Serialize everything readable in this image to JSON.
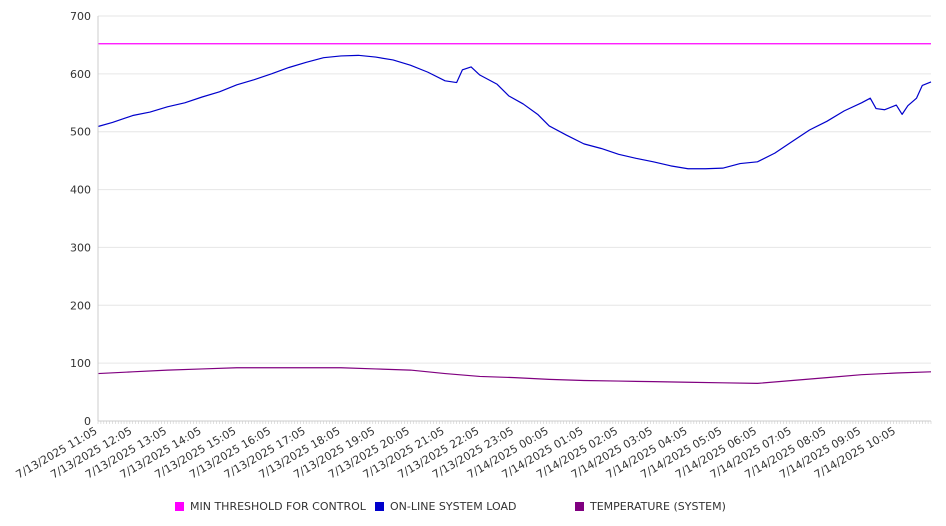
{
  "chart_data": {
    "type": "line",
    "ylim": [
      0,
      700
    ],
    "yticks": [
      0,
      100,
      200,
      300,
      400,
      500,
      600,
      700
    ],
    "x_tick_labels": [
      "7/13/2025 11:05",
      "7/13/2025 12:05",
      "7/13/2025 13:05",
      "7/13/2025 14:05",
      "7/13/2025 15:05",
      "7/13/2025 16:05",
      "7/13/2025 17:05",
      "7/13/2025 18:05",
      "7/13/2025 19:05",
      "7/13/2025 20:05",
      "7/13/2025 21:05",
      "7/13/2025 22:05",
      "7/13/2025 23:05",
      "7/14/2025 00:05",
      "7/14/2025 01:05",
      "7/14/2025 02:05",
      "7/14/2025 03:05",
      "7/14/2025 04:05",
      "7/14/2025 05:05",
      "7/14/2025 06:05",
      "7/14/2025 07:05",
      "7/14/2025 08:05",
      "7/14/2025 09:05",
      "7/14/2025 10:05"
    ],
    "x_start": "7/13/2025 11:05",
    "x_end": "7/14/2025 11:05",
    "grid": true,
    "legend_position": "bottom",
    "series": [
      {
        "name": "MIN THRESHOLD FOR CONTROL",
        "color": "#ff00ff",
        "points": [
          [
            "7/13/2025 11:05",
            652
          ],
          [
            "7/14/2025 11:05",
            652
          ]
        ]
      },
      {
        "name": "ON-LINE SYSTEM LOAD",
        "color": "#0000cc",
        "points": [
          [
            "7/13/2025 11:05",
            509
          ],
          [
            "7/13/2025 11:30",
            516
          ],
          [
            "7/13/2025 12:05",
            528
          ],
          [
            "7/13/2025 12:35",
            534
          ],
          [
            "7/13/2025 13:05",
            543
          ],
          [
            "7/13/2025 13:35",
            550
          ],
          [
            "7/13/2025 14:05",
            560
          ],
          [
            "7/13/2025 14:35",
            569
          ],
          [
            "7/13/2025 15:05",
            581
          ],
          [
            "7/13/2025 15:35",
            590
          ],
          [
            "7/13/2025 16:05",
            600
          ],
          [
            "7/13/2025 16:35",
            611
          ],
          [
            "7/13/2025 17:05",
            620
          ],
          [
            "7/13/2025 17:35",
            628
          ],
          [
            "7/13/2025 18:05",
            631
          ],
          [
            "7/13/2025 18:35",
            632
          ],
          [
            "7/13/2025 19:05",
            629
          ],
          [
            "7/13/2025 19:35",
            624
          ],
          [
            "7/13/2025 20:05",
            615
          ],
          [
            "7/13/2025 20:35",
            603
          ],
          [
            "7/13/2025 21:05",
            588
          ],
          [
            "7/13/2025 21:25",
            585
          ],
          [
            "7/13/2025 21:35",
            607
          ],
          [
            "7/13/2025 21:50",
            612
          ],
          [
            "7/13/2025 22:05",
            598
          ],
          [
            "7/13/2025 22:35",
            582
          ],
          [
            "7/13/2025 22:55",
            562
          ],
          [
            "7/13/2025 23:20",
            548
          ],
          [
            "7/13/2025 23:45",
            530
          ],
          [
            "7/14/2025 00:05",
            510
          ],
          [
            "7/14/2025 00:35",
            494
          ],
          [
            "7/14/2025 01:05",
            479
          ],
          [
            "7/14/2025 01:35",
            471
          ],
          [
            "7/14/2025 02:05",
            461
          ],
          [
            "7/14/2025 02:35",
            454
          ],
          [
            "7/14/2025 03:05",
            448
          ],
          [
            "7/14/2025 03:35",
            441
          ],
          [
            "7/14/2025 04:05",
            436
          ],
          [
            "7/14/2025 04:35",
            436
          ],
          [
            "7/14/2025 05:05",
            437
          ],
          [
            "7/14/2025 05:35",
            445
          ],
          [
            "7/14/2025 06:05",
            448
          ],
          [
            "7/14/2025 06:35",
            463
          ],
          [
            "7/14/2025 07:05",
            483
          ],
          [
            "7/14/2025 07:35",
            503
          ],
          [
            "7/14/2025 08:05",
            518
          ],
          [
            "7/14/2025 08:35",
            536
          ],
          [
            "7/14/2025 09:05",
            550
          ],
          [
            "7/14/2025 09:20",
            558
          ],
          [
            "7/14/2025 09:30",
            540
          ],
          [
            "7/14/2025 09:45",
            538
          ],
          [
            "7/14/2025 10:05",
            546
          ],
          [
            "7/14/2025 10:15",
            530
          ],
          [
            "7/14/2025 10:25",
            545
          ],
          [
            "7/14/2025 10:40",
            558
          ],
          [
            "7/14/2025 10:50",
            580
          ],
          [
            "7/14/2025 11:05",
            586
          ]
        ]
      },
      {
        "name": "TEMPERATURE (SYSTEM)",
        "color": "#800080",
        "points": [
          [
            "7/13/2025 11:05",
            82
          ],
          [
            "7/13/2025 12:05",
            85
          ],
          [
            "7/13/2025 13:05",
            88
          ],
          [
            "7/13/2025 14:05",
            90
          ],
          [
            "7/13/2025 15:05",
            92
          ],
          [
            "7/13/2025 16:05",
            92
          ],
          [
            "7/13/2025 17:05",
            92
          ],
          [
            "7/13/2025 18:05",
            92
          ],
          [
            "7/13/2025 19:05",
            90
          ],
          [
            "7/13/2025 20:05",
            88
          ],
          [
            "7/13/2025 21:05",
            82
          ],
          [
            "7/13/2025 22:05",
            77
          ],
          [
            "7/13/2025 23:05",
            75
          ],
          [
            "7/14/2025 00:05",
            72
          ],
          [
            "7/14/2025 01:05",
            70
          ],
          [
            "7/14/2025 02:05",
            69
          ],
          [
            "7/14/2025 03:05",
            68
          ],
          [
            "7/14/2025 04:05",
            67
          ],
          [
            "7/14/2025 05:05",
            66
          ],
          [
            "7/14/2025 06:05",
            65
          ],
          [
            "7/14/2025 07:05",
            70
          ],
          [
            "7/14/2025 08:05",
            75
          ],
          [
            "7/14/2025 09:05",
            80
          ],
          [
            "7/14/2025 10:05",
            83
          ],
          [
            "7/14/2025 11:05",
            85
          ]
        ]
      }
    ]
  }
}
